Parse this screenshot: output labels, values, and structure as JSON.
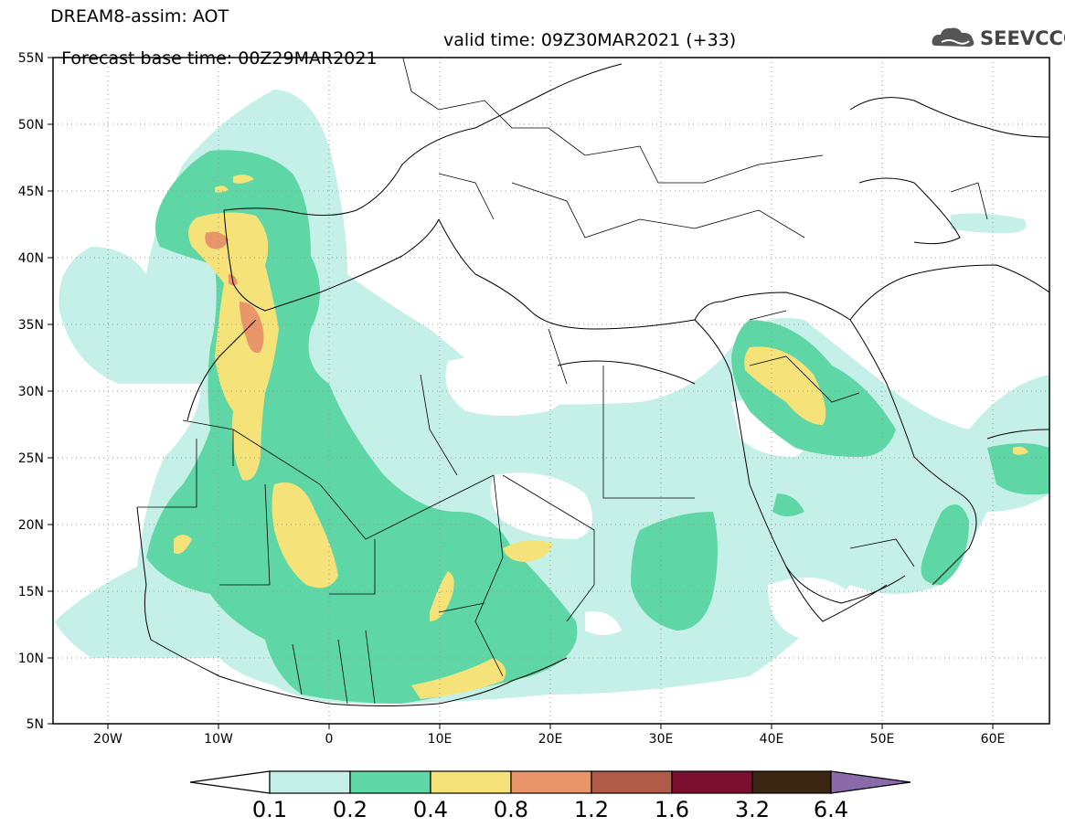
{
  "header": {
    "line1": "DREAM8-assim: AOT",
    "line2": "Forecast base time: 00Z29MAR2021",
    "valid": "valid time: 09Z30MAR2021 (+33)"
  },
  "logo": {
    "text": "SEEVCCC",
    "icon": "cloud-logo-icon"
  },
  "map": {
    "lon_range": [
      -25,
      65
    ],
    "lat_range": [
      5,
      55
    ],
    "lat_ticks": [
      "5N",
      "10N",
      "15N",
      "20N",
      "25N",
      "30N",
      "35N",
      "40N",
      "45N",
      "50N",
      "55N"
    ],
    "lon_ticks": [
      "20W",
      "10W",
      "0",
      "10E",
      "20E",
      "30E",
      "40E",
      "50E",
      "60E"
    ],
    "grid": "dotted"
  },
  "colorbar": {
    "labels": [
      "0.1",
      "0.2",
      "0.4",
      "0.8",
      "1.2",
      "1.6",
      "3.2",
      "6.4"
    ],
    "colors": [
      "#ffffff",
      "#c4f0e8",
      "#5ed6a6",
      "#f5e37a",
      "#e8956a",
      "#b05a4a",
      "#7a0f30",
      "#3a2412",
      "#8a6aa8"
    ]
  }
}
